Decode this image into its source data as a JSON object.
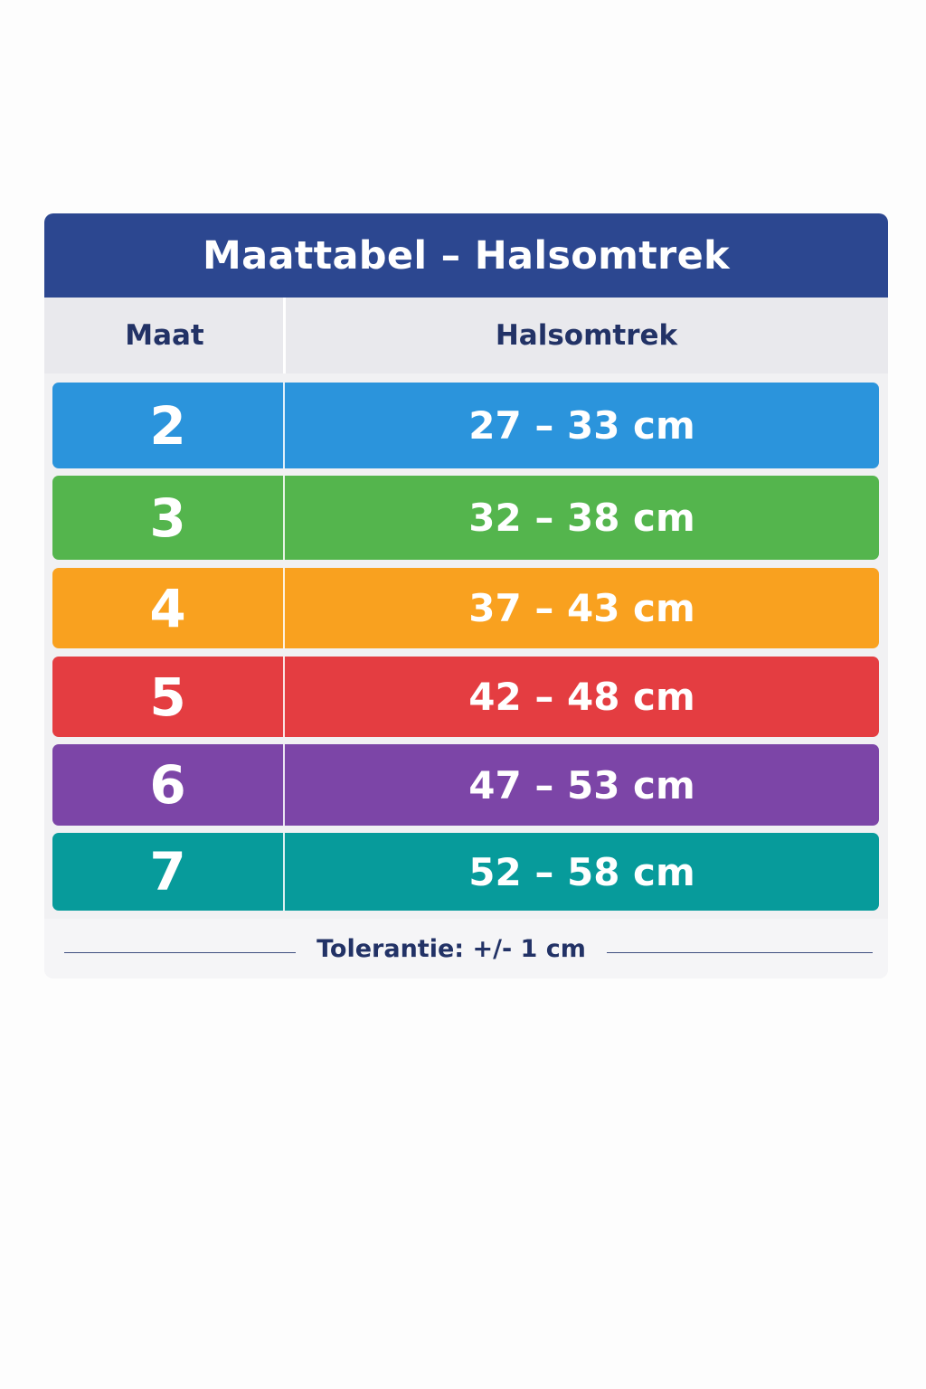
{
  "title": "Maattabel – Halsomtrek",
  "headers": {
    "size": "Maat",
    "neck": "Halsomtrek"
  },
  "rows": [
    {
      "size": "2",
      "neck": "27 – 33 cm",
      "color": "#2b94dc"
    },
    {
      "size": "3",
      "neck": "32 – 38 cm",
      "color": "#54b54d"
    },
    {
      "size": "4",
      "neck": "37 – 43 cm",
      "color": "#f9a11f"
    },
    {
      "size": "5",
      "neck": "42 – 48 cm",
      "color": "#e43d41"
    },
    {
      "size": "6",
      "neck": "47 – 53 cm",
      "color": "#7c45a7"
    },
    {
      "size": "7",
      "neck": "52 – 58 cm",
      "color": "#079b9b"
    }
  ],
  "footer": {
    "tolerance": "Tolerantie: +/- 1 cm"
  },
  "colors": {
    "title_bar": "#2c4790",
    "header_text": "#223266"
  }
}
